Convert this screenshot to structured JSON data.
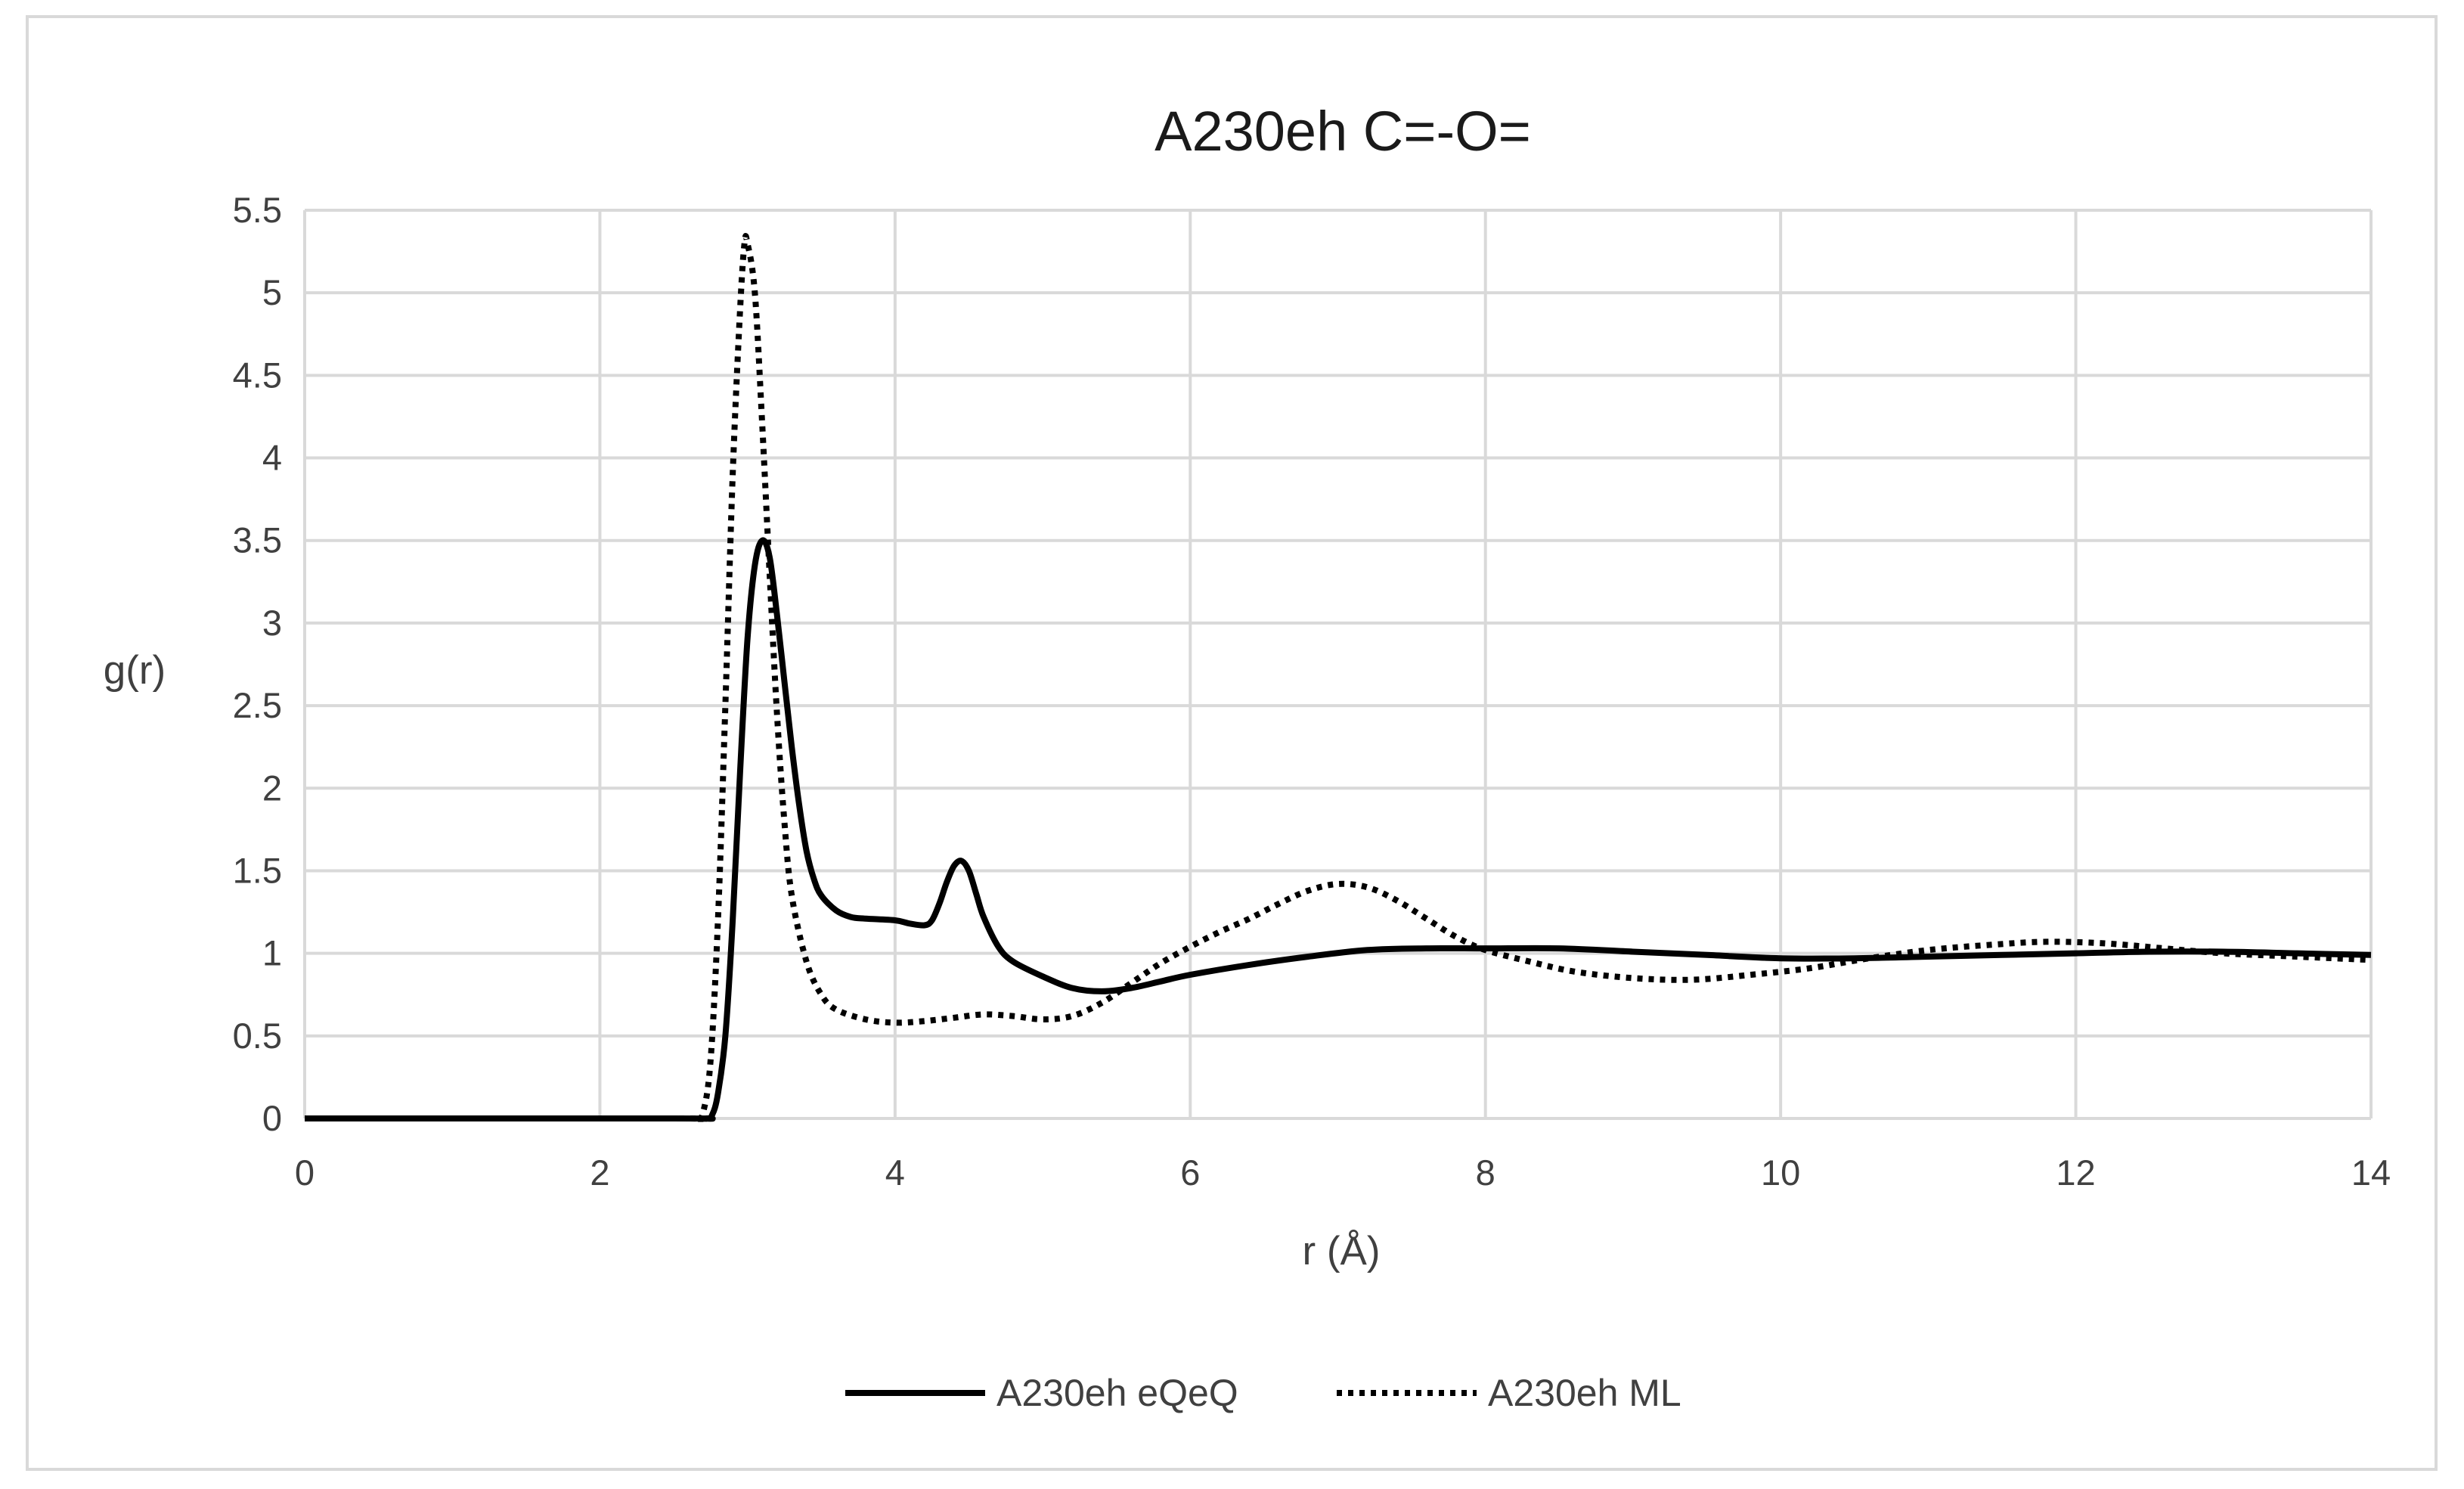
{
  "chart_data": {
    "type": "line",
    "title": "A230eh C=-O=",
    "xlabel": "r (Å)",
    "ylabel": "g(r)",
    "xlim": [
      0,
      14
    ],
    "ylim": [
      0,
      5.5
    ],
    "xticks": [
      0,
      2,
      4,
      6,
      8,
      10,
      12,
      14
    ],
    "yticks": [
      0,
      0.5,
      1,
      1.5,
      2,
      2.5,
      3,
      3.5,
      4,
      4.5,
      5,
      5.5
    ],
    "grid": true,
    "legend_position": "bottom",
    "series": [
      {
        "name": "A230eh eQeQ",
        "style": "solid",
        "color": "#000000",
        "points": [
          [
            0,
            0
          ],
          [
            2.5,
            0
          ],
          [
            2.72,
            0
          ],
          [
            2.76,
            0.02
          ],
          [
            2.8,
            0.15
          ],
          [
            2.85,
            0.5
          ],
          [
            2.9,
            1.2
          ],
          [
            2.95,
            2.1
          ],
          [
            3.0,
            2.9
          ],
          [
            3.05,
            3.35
          ],
          [
            3.1,
            3.5
          ],
          [
            3.15,
            3.4
          ],
          [
            3.2,
            3.05
          ],
          [
            3.25,
            2.65
          ],
          [
            3.3,
            2.25
          ],
          [
            3.35,
            1.9
          ],
          [
            3.4,
            1.62
          ],
          [
            3.45,
            1.45
          ],
          [
            3.5,
            1.35
          ],
          [
            3.6,
            1.26
          ],
          [
            3.7,
            1.22
          ],
          [
            3.8,
            1.21
          ],
          [
            4.0,
            1.2
          ],
          [
            4.1,
            1.18
          ],
          [
            4.2,
            1.17
          ],
          [
            4.25,
            1.2
          ],
          [
            4.3,
            1.3
          ],
          [
            4.35,
            1.43
          ],
          [
            4.4,
            1.53
          ],
          [
            4.45,
            1.56
          ],
          [
            4.5,
            1.5
          ],
          [
            4.55,
            1.36
          ],
          [
            4.6,
            1.22
          ],
          [
            4.7,
            1.04
          ],
          [
            4.8,
            0.95
          ],
          [
            5.0,
            0.86
          ],
          [
            5.2,
            0.79
          ],
          [
            5.4,
            0.77
          ],
          [
            5.6,
            0.79
          ],
          [
            5.8,
            0.83
          ],
          [
            6.0,
            0.87
          ],
          [
            6.4,
            0.93
          ],
          [
            6.8,
            0.98
          ],
          [
            7.2,
            1.02
          ],
          [
            7.6,
            1.03
          ],
          [
            8.0,
            1.03
          ],
          [
            8.5,
            1.03
          ],
          [
            9.0,
            1.01
          ],
          [
            9.5,
            0.99
          ],
          [
            10.0,
            0.97
          ],
          [
            10.5,
            0.97
          ],
          [
            11.0,
            0.98
          ],
          [
            11.5,
            0.99
          ],
          [
            12.0,
            1.0
          ],
          [
            12.5,
            1.01
          ],
          [
            13.0,
            1.01
          ],
          [
            13.5,
            1.0
          ],
          [
            14.0,
            0.99
          ]
        ]
      },
      {
        "name": "A230eh ML",
        "style": "dotted",
        "color": "#000000",
        "points": [
          [
            0,
            0
          ],
          [
            2.5,
            0
          ],
          [
            2.65,
            0
          ],
          [
            2.7,
            0.04
          ],
          [
            2.75,
            0.35
          ],
          [
            2.8,
            1.2
          ],
          [
            2.85,
            2.5
          ],
          [
            2.9,
            3.9
          ],
          [
            2.95,
            4.9
          ],
          [
            2.98,
            5.3
          ],
          [
            3.0,
            5.3
          ],
          [
            3.05,
            5.0
          ],
          [
            3.1,
            4.2
          ],
          [
            3.15,
            3.3
          ],
          [
            3.2,
            2.45
          ],
          [
            3.25,
            1.8
          ],
          [
            3.3,
            1.35
          ],
          [
            3.4,
            0.95
          ],
          [
            3.5,
            0.75
          ],
          [
            3.6,
            0.66
          ],
          [
            3.8,
            0.6
          ],
          [
            4.0,
            0.58
          ],
          [
            4.2,
            0.59
          ],
          [
            4.4,
            0.61
          ],
          [
            4.6,
            0.63
          ],
          [
            4.8,
            0.62
          ],
          [
            5.0,
            0.6
          ],
          [
            5.2,
            0.62
          ],
          [
            5.4,
            0.7
          ],
          [
            5.6,
            0.82
          ],
          [
            5.8,
            0.94
          ],
          [
            6.0,
            1.04
          ],
          [
            6.2,
            1.13
          ],
          [
            6.4,
            1.21
          ],
          [
            6.6,
            1.3
          ],
          [
            6.8,
            1.38
          ],
          [
            7.0,
            1.42
          ],
          [
            7.2,
            1.4
          ],
          [
            7.4,
            1.32
          ],
          [
            7.6,
            1.21
          ],
          [
            7.8,
            1.1
          ],
          [
            8.0,
            1.02
          ],
          [
            8.3,
            0.95
          ],
          [
            8.6,
            0.89
          ],
          [
            9.0,
            0.85
          ],
          [
            9.4,
            0.84
          ],
          [
            9.8,
            0.87
          ],
          [
            10.2,
            0.91
          ],
          [
            10.6,
            0.97
          ],
          [
            11.0,
            1.02
          ],
          [
            11.4,
            1.05
          ],
          [
            11.8,
            1.07
          ],
          [
            12.2,
            1.06
          ],
          [
            12.6,
            1.03
          ],
          [
            13.0,
            1.0
          ],
          [
            13.5,
            0.98
          ],
          [
            14.0,
            0.96
          ]
        ]
      }
    ]
  }
}
